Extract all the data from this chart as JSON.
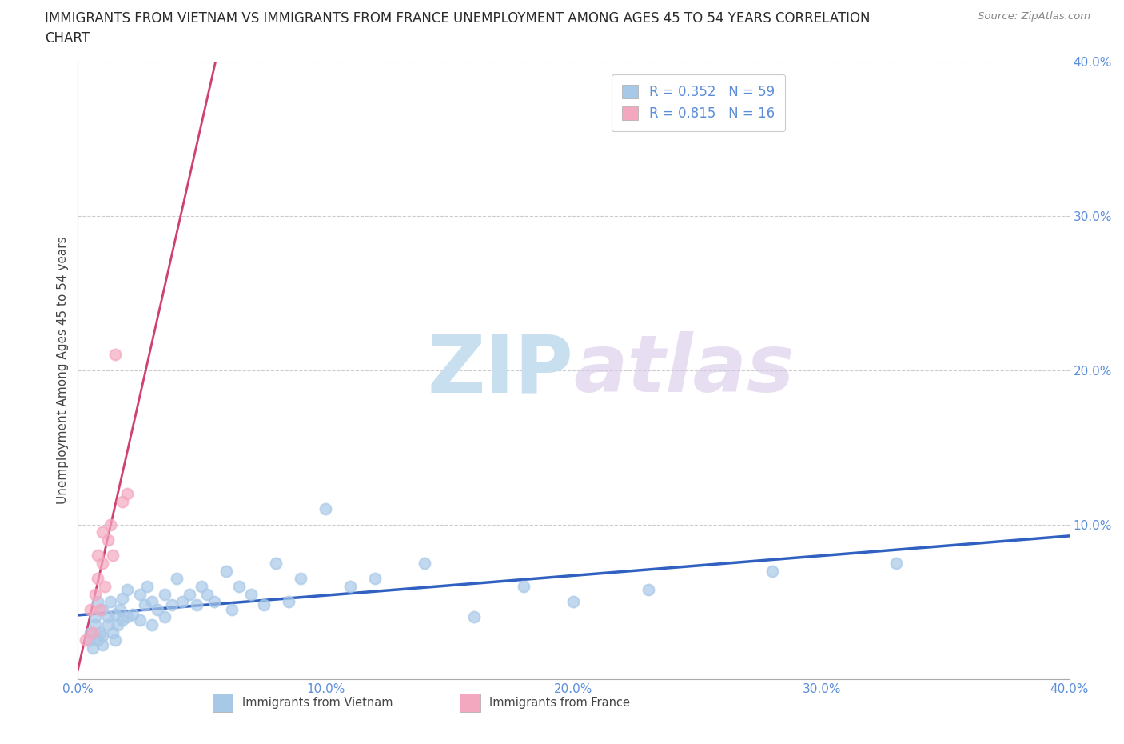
{
  "title_line1": "IMMIGRANTS FROM VIETNAM VS IMMIGRANTS FROM FRANCE UNEMPLOYMENT AMONG AGES 45 TO 54 YEARS CORRELATION",
  "title_line2": "CHART",
  "source": "Source: ZipAtlas.com",
  "ylabel": "Unemployment Among Ages 45 to 54 years",
  "xlabel_vietnam": "Immigrants from Vietnam",
  "xlabel_france": "Immigrants from France",
  "watermark": "ZIPatlas",
  "xlim": [
    0.0,
    0.4
  ],
  "ylim": [
    0.0,
    0.4
  ],
  "xticks": [
    0.0,
    0.1,
    0.2,
    0.3,
    0.4
  ],
  "yticks": [
    0.0,
    0.1,
    0.2,
    0.3,
    0.4
  ],
  "legend_R1": "R = 0.352",
  "legend_N1": "N = 59",
  "legend_R2": "R = 0.815",
  "legend_N2": "N = 16",
  "color_vietnam": "#a8c8e8",
  "color_france": "#f4a8c0",
  "color_vietnam_line": "#3060c0",
  "color_france_line": "#d04070",
  "color_title": "#2a2a2a",
  "color_ticks": "#5b8dd9",
  "color_source": "#888888",
  "color_grid": "#cccccc",
  "color_watermark": "#c8dff0",
  "background_color": "#ffffff",
  "title_fontsize": 12,
  "axis_label_fontsize": 11,
  "tick_fontsize": 11,
  "legend_fontsize": 12,
  "vietnam_x": [
    0.005,
    0.005,
    0.006,
    0.007,
    0.007,
    0.008,
    0.008,
    0.009,
    0.01,
    0.01,
    0.01,
    0.012,
    0.012,
    0.013,
    0.014,
    0.015,
    0.015,
    0.016,
    0.017,
    0.018,
    0.018,
    0.02,
    0.02,
    0.022,
    0.025,
    0.025,
    0.027,
    0.028,
    0.03,
    0.03,
    0.032,
    0.035,
    0.035,
    0.038,
    0.04,
    0.042,
    0.045,
    0.048,
    0.05,
    0.052,
    0.055,
    0.06,
    0.062,
    0.065,
    0.07,
    0.075,
    0.08,
    0.085,
    0.09,
    0.1,
    0.11,
    0.12,
    0.14,
    0.16,
    0.18,
    0.2,
    0.23,
    0.28,
    0.33
  ],
  "vietnam_y": [
    0.03,
    0.025,
    0.02,
    0.035,
    0.04,
    0.025,
    0.05,
    0.03,
    0.045,
    0.028,
    0.022,
    0.04,
    0.035,
    0.05,
    0.03,
    0.042,
    0.025,
    0.035,
    0.045,
    0.038,
    0.052,
    0.04,
    0.058,
    0.042,
    0.055,
    0.038,
    0.048,
    0.06,
    0.035,
    0.05,
    0.045,
    0.055,
    0.04,
    0.048,
    0.065,
    0.05,
    0.055,
    0.048,
    0.06,
    0.055,
    0.05,
    0.07,
    0.045,
    0.06,
    0.055,
    0.048,
    0.075,
    0.05,
    0.065,
    0.11,
    0.06,
    0.065,
    0.075,
    0.04,
    0.06,
    0.05,
    0.058,
    0.07,
    0.075
  ],
  "france_x": [
    0.003,
    0.005,
    0.006,
    0.007,
    0.008,
    0.008,
    0.009,
    0.01,
    0.01,
    0.011,
    0.012,
    0.013,
    0.014,
    0.015,
    0.018,
    0.02
  ],
  "france_y": [
    0.025,
    0.045,
    0.03,
    0.055,
    0.065,
    0.08,
    0.045,
    0.075,
    0.095,
    0.06,
    0.09,
    0.1,
    0.08,
    0.21,
    0.115,
    0.12
  ]
}
